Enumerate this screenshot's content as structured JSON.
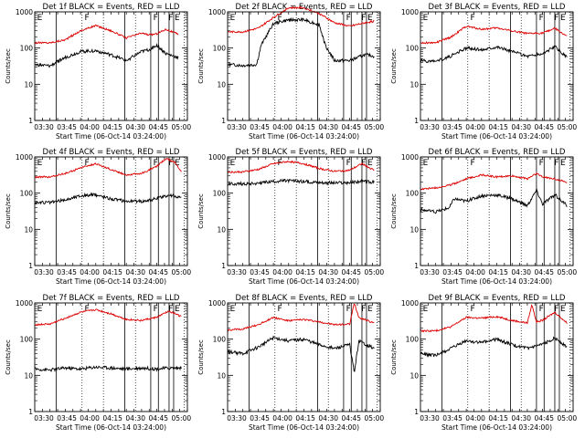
{
  "colors": {
    "background": "#ffffff",
    "axis": "#000000",
    "events": "#000000",
    "lld": "#dd0000"
  },
  "chart_data": [
    {
      "type": "line",
      "title": "Det 1f  BLACK = Events, RED = LLD",
      "xlabel": "Start Time (06-Oct-14 03:24:00)",
      "ylabel": "Counts/sec",
      "xlim": [
        "03:24",
        "05:04"
      ],
      "ylim": [
        1,
        1000
      ],
      "yscale": "log",
      "xticks": [
        "03:30",
        "03:45",
        "04:00",
        "04:15",
        "04:30",
        "04:45",
        "05:00"
      ],
      "yticks": [
        "1",
        "10",
        "100",
        "1000"
      ],
      "flags": [
        "E",
        "F",
        "F",
        "F",
        "E"
      ],
      "series": [
        {
          "name": "RED = LLD",
          "color": "#dd0000",
          "x": [
            "03:24",
            "03:34",
            "03:44",
            "03:54",
            "04:04",
            "04:14",
            "04:24",
            "04:34",
            "04:39",
            "04:44",
            "04:50",
            "04:58"
          ],
          "y": [
            140,
            140,
            170,
            300,
            420,
            300,
            190,
            260,
            230,
            250,
            330,
            240
          ]
        },
        {
          "name": "BLACK = Events",
          "color": "#000000",
          "x": [
            "03:24",
            "03:34",
            "03:44",
            "03:54",
            "04:04",
            "04:14",
            "04:24",
            "04:34",
            "04:39",
            "04:44",
            "04:50",
            "04:58"
          ],
          "y": [
            35,
            32,
            55,
            80,
            85,
            65,
            45,
            80,
            90,
            120,
            70,
            55
          ]
        }
      ]
    },
    {
      "type": "line",
      "title": "Det 2f  BLACK = Events, RED = LLD",
      "xlabel": "Start Time (06-Oct-14 03:24:00)",
      "ylabel": "Counts/sec",
      "xlim": [
        "03:24",
        "05:04"
      ],
      "ylim": [
        1,
        1000
      ],
      "yscale": "log",
      "xticks": [
        "03:30",
        "03:45",
        "04:00",
        "04:15",
        "04:30",
        "04:45",
        "05:00"
      ],
      "yticks": [
        "1",
        "10",
        "100",
        "1000"
      ],
      "flags": [
        "E",
        "F",
        "F",
        "F",
        "E"
      ],
      "series": [
        {
          "name": "RED = LLD",
          "color": "#dd0000",
          "x": [
            "03:24",
            "03:34",
            "03:44",
            "03:54",
            "04:04",
            "04:14",
            "04:24",
            "04:34",
            "04:44",
            "04:54",
            "05:00"
          ],
          "y": [
            280,
            280,
            350,
            700,
            1300,
            1300,
            900,
            500,
            400,
            500,
            550
          ]
        },
        {
          "name": "BLACK = Events",
          "color": "#000000",
          "x": [
            "03:24",
            "03:34",
            "03:43",
            "03:46",
            "03:54",
            "04:04",
            "04:14",
            "04:24",
            "04:28",
            "04:34",
            "04:44",
            "04:54",
            "05:00"
          ],
          "y": [
            35,
            33,
            35,
            120,
            480,
            600,
            600,
            450,
            120,
            45,
            45,
            65,
            60
          ]
        }
      ]
    },
    {
      "type": "line",
      "title": "Det 3f  BLACK = Events, RED = LLD",
      "xlabel": "Start Time (06-Oct-14 03:24:00)",
      "ylabel": "Counts/sec",
      "xlim": [
        "03:24",
        "05:04"
      ],
      "ylim": [
        1,
        1000
      ],
      "yscale": "log",
      "xticks": [
        "03:30",
        "03:45",
        "04:00",
        "04:15",
        "04:30",
        "04:45",
        "05:00"
      ],
      "yticks": [
        "1",
        "10",
        "100",
        "1000"
      ],
      "flags": [
        "E",
        "F",
        "F",
        "F",
        "E"
      ],
      "series": [
        {
          "name": "RED = LLD",
          "color": "#dd0000",
          "x": [
            "03:24",
            "03:34",
            "03:44",
            "03:54",
            "04:04",
            "04:14",
            "04:24",
            "04:34",
            "04:44",
            "04:52",
            "05:00"
          ],
          "y": [
            140,
            140,
            200,
            400,
            330,
            360,
            300,
            250,
            260,
            350,
            210
          ]
        },
        {
          "name": "BLACK = Events",
          "color": "#000000",
          "x": [
            "03:24",
            "03:34",
            "03:44",
            "03:54",
            "04:04",
            "04:14",
            "04:24",
            "04:34",
            "04:44",
            "04:52",
            "05:00"
          ],
          "y": [
            45,
            42,
            60,
            100,
            90,
            110,
            80,
            60,
            70,
            110,
            55
          ]
        }
      ]
    },
    {
      "type": "line",
      "title": "Det 4f  BLACK = Events, RED = LLD",
      "xlabel": "Start Time (06-Oct-14 03:24:00)",
      "ylabel": "Counts/sec",
      "xlim": [
        "03:24",
        "05:04"
      ],
      "ylim": [
        1,
        1000
      ],
      "yscale": "log",
      "xticks": [
        "03:30",
        "03:45",
        "04:00",
        "04:15",
        "04:30",
        "04:45",
        "05:00"
      ],
      "yticks": [
        "1",
        "10",
        "100",
        "1000"
      ],
      "flags": [
        "E",
        "F",
        "F",
        "F",
        "E"
      ],
      "series": [
        {
          "name": "RED = LLD",
          "color": "#dd0000",
          "x": [
            "03:24",
            "03:34",
            "03:44",
            "03:54",
            "04:04",
            "04:14",
            "04:24",
            "04:34",
            "04:44",
            "04:50",
            "04:56",
            "05:00"
          ],
          "y": [
            280,
            280,
            350,
            500,
            650,
            450,
            320,
            350,
            550,
            900,
            700,
            400
          ]
        },
        {
          "name": "BLACK = Events",
          "color": "#000000",
          "x": [
            "03:24",
            "03:34",
            "03:44",
            "03:54",
            "04:04",
            "04:14",
            "04:24",
            "04:34",
            "04:44",
            "04:52",
            "05:00"
          ],
          "y": [
            55,
            55,
            65,
            85,
            90,
            70,
            60,
            60,
            70,
            90,
            75
          ]
        }
      ]
    },
    {
      "type": "line",
      "title": "Det 5f  BLACK = Events, RED = LLD",
      "xlabel": "Start Time (06-Oct-14 03:24:00)",
      "ylabel": "Counts/sec",
      "xlim": [
        "03:24",
        "05:04"
      ],
      "ylim": [
        1,
        1000
      ],
      "yscale": "log",
      "xticks": [
        "03:30",
        "03:45",
        "04:00",
        "04:15",
        "04:30",
        "04:45",
        "05:00"
      ],
      "yticks": [
        "1",
        "10",
        "100",
        "1000"
      ],
      "flags": [
        "E",
        "F",
        "F",
        "F",
        "E"
      ],
      "series": [
        {
          "name": "RED = LLD",
          "color": "#dd0000",
          "x": [
            "03:24",
            "03:34",
            "03:44",
            "03:54",
            "04:04",
            "04:14",
            "04:24",
            "04:34",
            "04:44",
            "04:52",
            "05:00"
          ],
          "y": [
            380,
            390,
            450,
            650,
            750,
            650,
            480,
            400,
            430,
            650,
            430
          ]
        },
        {
          "name": "BLACK = Events",
          "color": "#000000",
          "x": [
            "03:24",
            "03:34",
            "03:44",
            "03:54",
            "04:04",
            "04:14",
            "04:24",
            "04:34",
            "04:44",
            "04:52",
            "05:00"
          ],
          "y": [
            180,
            180,
            190,
            210,
            220,
            210,
            200,
            190,
            195,
            210,
            200
          ]
        }
      ]
    },
    {
      "type": "line",
      "title": "Det 6f  BLACK = Events, RED = LLD",
      "xlabel": "Start Time (06-Oct-14 03:24:00)",
      "ylabel": "Counts/sec",
      "xlim": [
        "03:24",
        "05:04"
      ],
      "ylim": [
        1,
        1000
      ],
      "yscale": "log",
      "xticks": [
        "03:30",
        "03:45",
        "04:00",
        "04:15",
        "04:30",
        "04:45",
        "05:00"
      ],
      "yticks": [
        "1",
        "10",
        "100",
        "1000"
      ],
      "flags": [
        "E",
        "F",
        "F",
        "F",
        "E"
      ],
      "series": [
        {
          "name": "RED = LLD",
          "color": "#dd0000",
          "x": [
            "03:24",
            "03:34",
            "03:44",
            "03:54",
            "04:04",
            "04:14",
            "04:24",
            "04:34",
            "04:40",
            "04:44",
            "04:52",
            "05:00"
          ],
          "y": [
            130,
            140,
            170,
            250,
            320,
            280,
            300,
            250,
            350,
            280,
            250,
            200
          ]
        },
        {
          "name": "BLACK = Events",
          "color": "#000000",
          "x": [
            "03:24",
            "03:34",
            "03:43",
            "03:46",
            "03:54",
            "04:04",
            "04:14",
            "04:24",
            "04:34",
            "04:40",
            "04:44",
            "04:52",
            "05:00"
          ],
          "y": [
            35,
            30,
            40,
            70,
            60,
            85,
            90,
            70,
            45,
            120,
            50,
            90,
            45
          ]
        }
      ]
    },
    {
      "type": "line",
      "title": "Det 7f  BLACK = Events, RED = LLD",
      "xlabel": "Start Time (06-Oct-14 03:24:00)",
      "ylabel": "Counts/sec",
      "xlim": [
        "03:24",
        "05:04"
      ],
      "ylim": [
        1,
        1000
      ],
      "yscale": "log",
      "xticks": [
        "03:30",
        "03:45",
        "04:00",
        "04:15",
        "04:30",
        "04:45",
        "05:00"
      ],
      "yticks": [
        "1",
        "10",
        "100",
        "1000"
      ],
      "flags": [
        "E",
        "F",
        "F",
        "F",
        "E"
      ],
      "series": [
        {
          "name": "RED = LLD",
          "color": "#dd0000",
          "x": [
            "03:24",
            "03:34",
            "03:44",
            "03:54",
            "04:04",
            "04:14",
            "04:24",
            "04:34",
            "04:44",
            "04:52",
            "05:00"
          ],
          "y": [
            250,
            260,
            380,
            550,
            650,
            500,
            350,
            330,
            400,
            600,
            420
          ]
        },
        {
          "name": "BLACK = Events",
          "color": "#000000",
          "x": [
            "03:24",
            "03:34",
            "03:44",
            "03:54",
            "04:04",
            "04:14",
            "04:24",
            "04:34",
            "04:44",
            "04:52",
            "05:00"
          ],
          "y": [
            15,
            14,
            16,
            15,
            17,
            16,
            15,
            16,
            15,
            16,
            16
          ]
        }
      ]
    },
    {
      "type": "line",
      "title": "Det 8f  BLACK = Events, RED = LLD",
      "xlabel": "Start Time (06-Oct-14 03:24:00)",
      "ylabel": "Counts/sec",
      "xlim": [
        "03:24",
        "05:04"
      ],
      "ylim": [
        1,
        1000
      ],
      "yscale": "log",
      "xticks": [
        "03:30",
        "03:45",
        "04:00",
        "04:15",
        "04:30",
        "04:45",
        "05:00"
      ],
      "yticks": [
        "1",
        "10",
        "100",
        "1000"
      ],
      "flags": [
        "E",
        "F",
        "F",
        "F",
        "E"
      ],
      "series": [
        {
          "name": "RED = LLD",
          "color": "#dd0000",
          "x": [
            "03:24",
            "03:34",
            "03:44",
            "03:54",
            "04:04",
            "04:14",
            "04:24",
            "04:34",
            "04:44",
            "04:47",
            "04:50",
            "05:00"
          ],
          "y": [
            180,
            190,
            250,
            400,
            320,
            350,
            300,
            250,
            260,
            1000,
            400,
            280
          ]
        },
        {
          "name": "BLACK = Events",
          "color": "#000000",
          "x": [
            "03:24",
            "03:34",
            "03:44",
            "03:54",
            "04:04",
            "04:14",
            "04:24",
            "04:34",
            "04:44",
            "04:47",
            "04:50",
            "05:00"
          ],
          "y": [
            45,
            40,
            60,
            110,
            90,
            100,
            70,
            55,
            70,
            12,
            90,
            55
          ]
        }
      ]
    },
    {
      "type": "line",
      "title": "Det 9f  BLACK = Events, RED = LLD",
      "xlabel": "Start Time (06-Oct-14 03:24:00)",
      "ylabel": "Counts/sec",
      "xlim": [
        "03:24",
        "05:04"
      ],
      "ylim": [
        1,
        1000
      ],
      "yscale": "log",
      "xticks": [
        "03:30",
        "03:45",
        "04:00",
        "04:15",
        "04:30",
        "04:45",
        "05:00"
      ],
      "yticks": [
        "1",
        "10",
        "100",
        "1000"
      ],
      "flags": [
        "E",
        "F",
        "F",
        "F",
        "E"
      ],
      "series": [
        {
          "name": "RED = LLD",
          "color": "#dd0000",
          "x": [
            "03:24",
            "03:34",
            "03:44",
            "03:54",
            "04:04",
            "04:14",
            "04:24",
            "04:34",
            "04:37",
            "04:40",
            "04:44",
            "04:52",
            "05:00"
          ],
          "y": [
            170,
            170,
            220,
            400,
            380,
            420,
            330,
            280,
            900,
            300,
            330,
            550,
            280
          ]
        },
        {
          "name": "BLACK = Events",
          "color": "#000000",
          "x": [
            "03:24",
            "03:34",
            "03:44",
            "03:54",
            "04:04",
            "04:14",
            "04:24",
            "04:34",
            "04:44",
            "04:52",
            "05:00"
          ],
          "y": [
            40,
            35,
            55,
            90,
            80,
            100,
            70,
            55,
            70,
            110,
            60
          ]
        }
      ]
    }
  ]
}
